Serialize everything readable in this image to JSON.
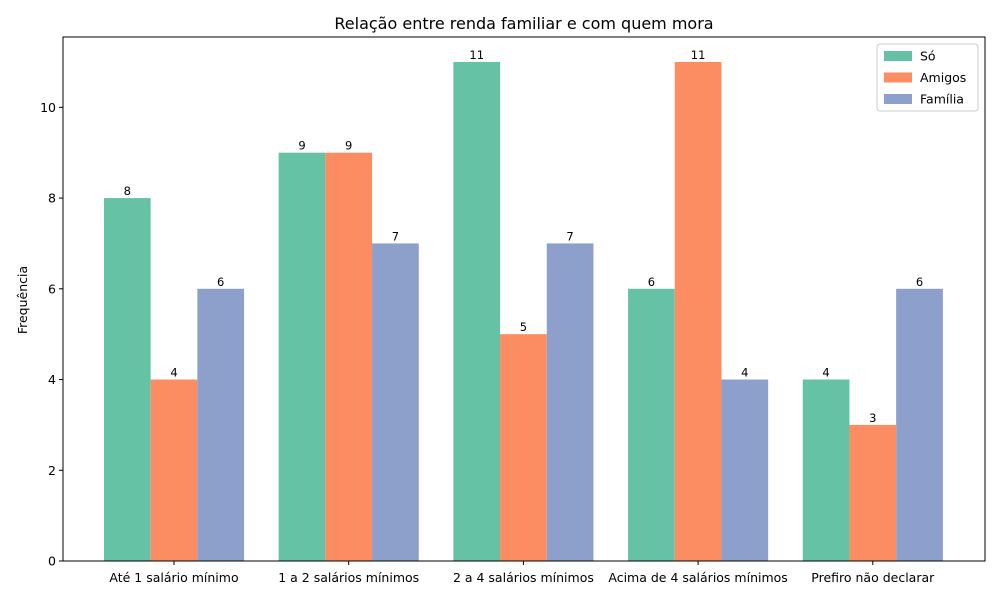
{
  "chart_data": {
    "type": "bar",
    "title": "Relação entre renda familiar e com quem mora",
    "xlabel": "",
    "ylabel": "Frequência",
    "ylim": [
      0,
      11.55
    ],
    "yticks": [
      0,
      2,
      4,
      6,
      8,
      10
    ],
    "grid": false,
    "legend_position": "top-right",
    "categories": [
      "Até 1 salário mínimo",
      "1 a 2 salários mínimos",
      "2 a 4 salários mínimos",
      "Acima de 4 salários mínimos",
      "Prefiro não declarar"
    ],
    "series": [
      {
        "name": "Só",
        "color": "#66c2a5",
        "values": [
          8,
          9,
          11,
          6,
          4
        ]
      },
      {
        "name": "Amigos",
        "color": "#fc8d62",
        "values": [
          4,
          9,
          5,
          11,
          3
        ]
      },
      {
        "name": "Família",
        "color": "#8da0cb",
        "values": [
          6,
          7,
          7,
          4,
          6
        ]
      }
    ]
  }
}
